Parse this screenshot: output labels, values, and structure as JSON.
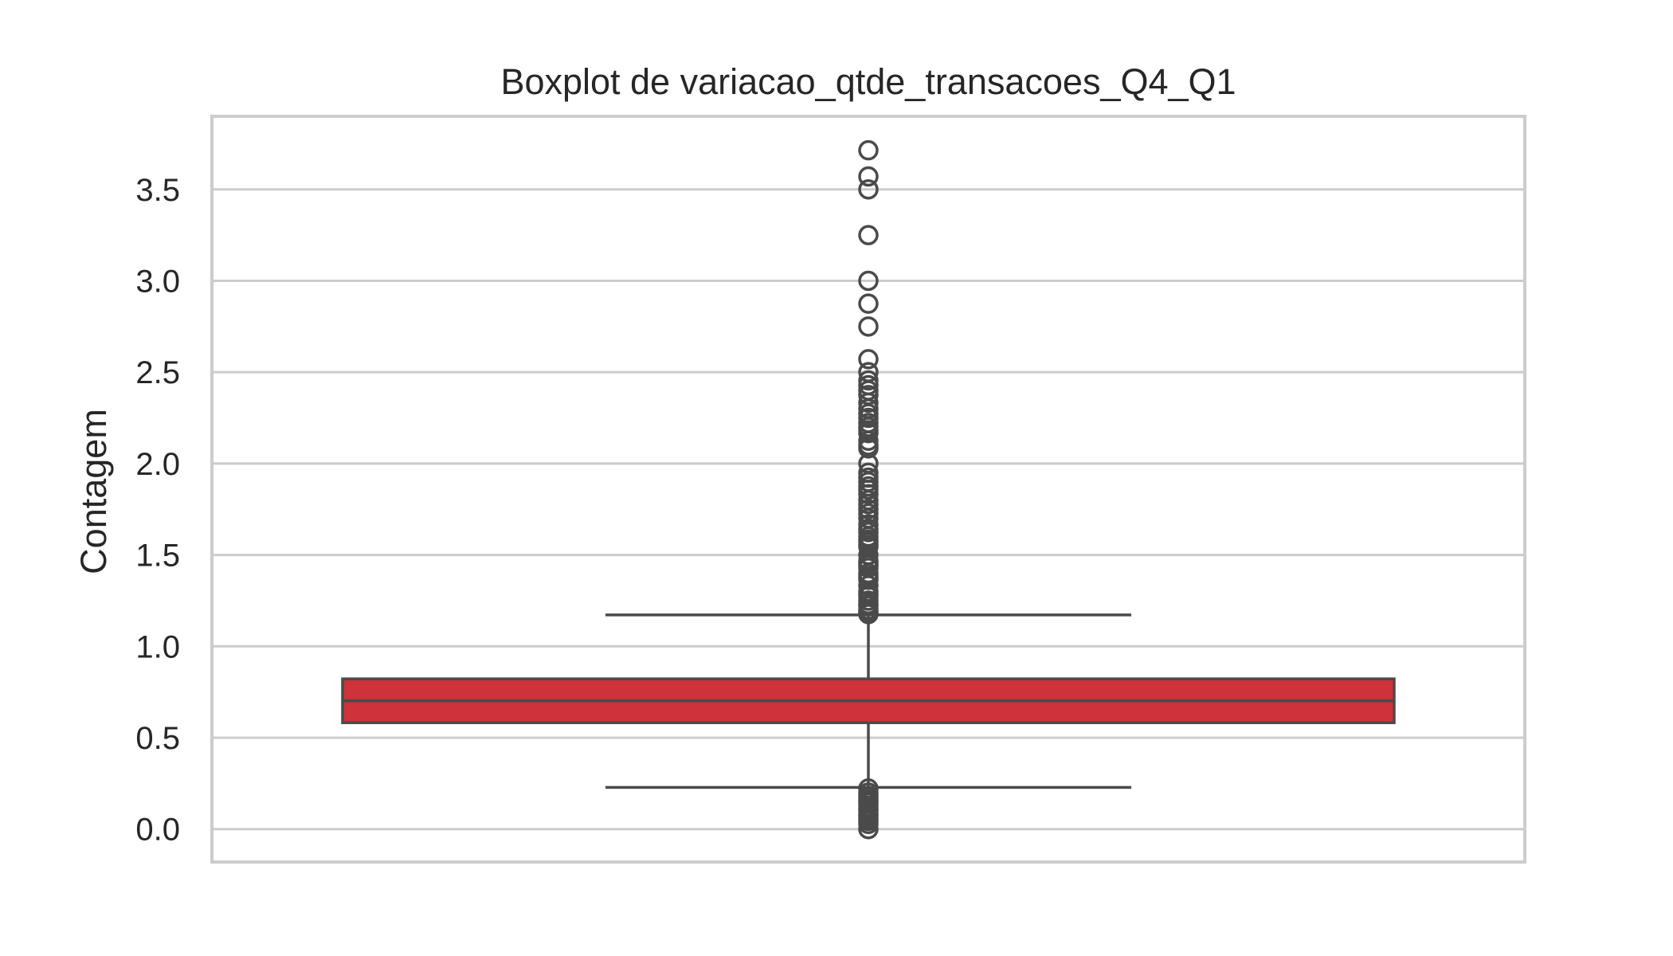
{
  "chart_data": {
    "type": "boxplot",
    "title": "Boxplot de variacao_qtde_transacoes_Q4_Q1",
    "xlabel": "",
    "ylabel": "Contagem",
    "ylim": [
      -0.18,
      3.9
    ],
    "yticks": [
      0.0,
      0.5,
      1.0,
      1.5,
      2.0,
      2.5,
      3.0,
      3.5
    ],
    "ytick_labels": [
      "0.0",
      "0.5",
      "1.0",
      "1.5",
      "2.0",
      "2.5",
      "3.0",
      "3.5"
    ],
    "grid": true,
    "colors": {
      "box_fill": "#cf3238",
      "box_edge": "#4a4a4a",
      "grid": "#cccccc",
      "frame": "#cccccc",
      "text": "#262626"
    },
    "box": {
      "q1": 0.582,
      "median": 0.702,
      "q3": 0.822,
      "whisker_low": 0.228,
      "whisker_high": 1.172
    },
    "outliers": [
      3.714,
      3.571,
      3.5,
      3.25,
      3.0,
      2.875,
      2.75,
      2.571,
      2.5,
      2.455,
      2.429,
      2.4,
      2.375,
      2.333,
      2.3,
      2.273,
      2.25,
      2.222,
      2.2,
      2.182,
      2.167,
      2.125,
      2.1,
      2.083,
      2.0,
      1.95,
      1.923,
      1.9,
      1.875,
      1.857,
      1.833,
      1.8,
      1.778,
      1.75,
      1.727,
      1.7,
      1.667,
      1.643,
      1.625,
      1.6,
      1.583,
      1.571,
      1.556,
      1.545,
      1.5,
      1.467,
      1.455,
      1.444,
      1.429,
      1.4,
      1.385,
      1.375,
      1.364,
      1.333,
      1.3,
      1.286,
      1.273,
      1.25,
      1.231,
      1.222,
      1.2,
      1.188,
      1.182,
      1.176,
      0.222,
      0.2,
      0.182,
      0.167,
      0.154,
      0.143,
      0.125,
      0.111,
      0.1,
      0.083,
      0.071,
      0.056,
      0.045,
      0.028,
      0.0
    ]
  }
}
